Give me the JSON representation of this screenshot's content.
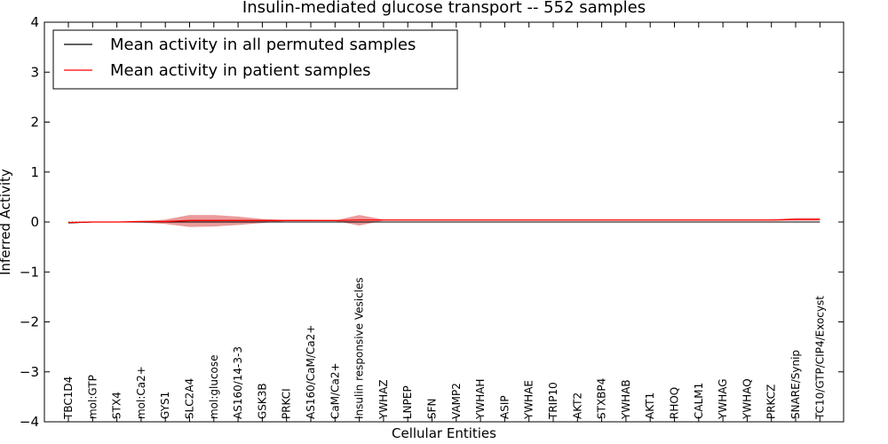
{
  "chart_data": {
    "type": "line",
    "title": "Insulin-mediated glucose transport -- 552 samples",
    "xlabel": "Cellular Entities",
    "ylabel": "Inferred Activity",
    "ylim": [
      -4,
      4
    ],
    "yticks": [
      -4,
      -3,
      -2,
      -1,
      0,
      1,
      2,
      3,
      4
    ],
    "grid": false,
    "legend_position": "top-left",
    "categories": [
      "TBC1D4",
      "mol:GTP",
      "STX4",
      "mol:Ca2+",
      "GYS1",
      "SLC2A4",
      "mol:glucose",
      "AS160/14-3-3",
      "GSK3B",
      "PRKCI",
      "AS160/CaM/Ca2+",
      "CaM/Ca2+",
      "Insulin responsive Vesicles",
      "YWHAZ",
      "LNPEP",
      "SFN",
      "VAMP2",
      "YWHAH",
      "ASIP",
      "YWHAE",
      "TRIP10",
      "AKT2",
      "STXBP4",
      "YWHAB",
      "AKT1",
      "RHOQ",
      "CALM1",
      "YWHAG",
      "YWHAQ",
      "PRKCZ",
      "SNARE/Synip",
      "TC10/GTP/CIP4/Exocyst"
    ],
    "series": [
      {
        "name": "Mean activity in all permuted samples",
        "color": "#000000",
        "values": [
          -0.02,
          0.0,
          0.0,
          0.0,
          0.0,
          0.0,
          0.0,
          0.0,
          0.0,
          0.0,
          0.0,
          0.0,
          0.0,
          0.0,
          0.0,
          0.0,
          0.0,
          0.0,
          0.0,
          0.0,
          0.0,
          0.0,
          0.0,
          0.0,
          0.0,
          0.0,
          0.0,
          0.0,
          0.0,
          0.0,
          0.0,
          0.0
        ]
      },
      {
        "name": "Mean activity in patient samples",
        "color": "#ff0000",
        "values": [
          -0.01,
          0.0,
          0.0,
          0.01,
          0.01,
          0.03,
          0.03,
          0.03,
          0.03,
          0.03,
          0.03,
          0.03,
          0.04,
          0.04,
          0.04,
          0.04,
          0.04,
          0.04,
          0.04,
          0.04,
          0.04,
          0.04,
          0.04,
          0.04,
          0.04,
          0.04,
          0.04,
          0.04,
          0.04,
          0.04,
          0.05,
          0.05
        ],
        "band_upper": [
          -0.01,
          0.0,
          0.01,
          0.01,
          0.05,
          0.14,
          0.14,
          0.11,
          0.06,
          0.04,
          0.04,
          0.03,
          0.14,
          0.05,
          0.05,
          0.05,
          0.05,
          0.05,
          0.05,
          0.05,
          0.05,
          0.05,
          0.05,
          0.05,
          0.05,
          0.05,
          0.05,
          0.05,
          0.05,
          0.05,
          0.08,
          0.08
        ],
        "band_lower": [
          -0.02,
          -0.01,
          -0.01,
          -0.01,
          -0.04,
          -0.1,
          -0.09,
          -0.06,
          -0.02,
          0.02,
          0.02,
          0.02,
          -0.07,
          0.03,
          0.03,
          0.03,
          0.03,
          0.03,
          0.03,
          0.03,
          0.03,
          0.03,
          0.03,
          0.03,
          0.03,
          0.03,
          0.03,
          0.03,
          0.03,
          0.03,
          0.03,
          0.03
        ],
        "band_color": "#e06666"
      }
    ],
    "reference_line": {
      "y": 0,
      "style": "dotted"
    }
  }
}
